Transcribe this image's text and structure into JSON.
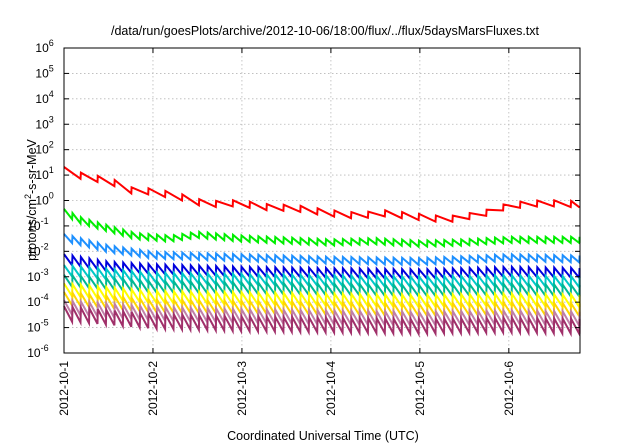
{
  "chart_data": {
    "type": "line",
    "title": "/data/run/goesPlots/archive/2012-10-06/18:00/flux/../flux/5daysMarsFluxes.txt",
    "xlabel": "Coordinated Universal Time (UTC)",
    "ylabel_base": "protons/cm",
    "ylabel_sup": "2",
    "ylabel_rest": "-s-sr-MeV",
    "x_unit": "days since 2012-10-01",
    "xlim": [
      0,
      5.8
    ],
    "x_ticks": [
      {
        "x": 0,
        "label": "2012-10-1"
      },
      {
        "x": 1,
        "label": "2012-10-2"
      },
      {
        "x": 2,
        "label": "2012-10-3"
      },
      {
        "x": 3,
        "label": "2012-10-4"
      },
      {
        "x": 4,
        "label": "2012-10-5"
      },
      {
        "x": 5,
        "label": "2012-10-6"
      }
    ],
    "y_scale": "log",
    "ylim_exp": [
      -6,
      6
    ],
    "y_ticks": [
      {
        "exp": -6,
        "base": "10",
        "sup": "-6"
      },
      {
        "exp": -5,
        "base": "10",
        "sup": "-5"
      },
      {
        "exp": -4,
        "base": "10",
        "sup": "-4"
      },
      {
        "exp": -3,
        "base": "10",
        "sup": "-3"
      },
      {
        "exp": -2,
        "base": "10",
        "sup": "-2"
      },
      {
        "exp": -1,
        "base": "10",
        "sup": "-1"
      },
      {
        "exp": 0,
        "base": "10",
        "sup": "0"
      },
      {
        "exp": 1,
        "base": "10",
        "sup": "1"
      },
      {
        "exp": 2,
        "base": "10",
        "sup": "2"
      },
      {
        "exp": 3,
        "base": "10",
        "sup": "3"
      },
      {
        "exp": 4,
        "base": "10",
        "sup": "4"
      },
      {
        "exp": 5,
        "base": "10",
        "sup": "5"
      },
      {
        "exp": 6,
        "base": "10",
        "sup": "6"
      }
    ],
    "grid": true,
    "series": [
      {
        "color": "#ff0000",
        "width": 2,
        "points": [
          [
            0,
            1.2
          ],
          [
            0.25,
            0.9
          ],
          [
            0.5,
            0.8
          ],
          [
            0.75,
            0.4
          ],
          [
            1.0,
            0.35
          ],
          [
            1.3,
            0.15
          ],
          [
            1.6,
            -0.15
          ],
          [
            2.0,
            -0.1
          ],
          [
            2.2,
            -0.25
          ],
          [
            2.6,
            -0.3
          ],
          [
            3.0,
            -0.5
          ],
          [
            3.3,
            -0.6
          ],
          [
            3.6,
            -0.5
          ],
          [
            4.0,
            -0.65
          ],
          [
            4.3,
            -0.75
          ],
          [
            4.5,
            -0.65
          ],
          [
            4.8,
            -0.45
          ],
          [
            5.0,
            -0.2
          ],
          [
            5.4,
            -0.1
          ],
          [
            5.8,
            -0.15
          ]
        ],
        "saw_period": 0.19,
        "saw_amp": 0.24
      },
      {
        "color": "#00ee00",
        "width": 2,
        "points": [
          [
            0,
            -0.45
          ],
          [
            0.2,
            -0.8
          ],
          [
            0.5,
            -1.1
          ],
          [
            0.8,
            -1.4
          ],
          [
            1.2,
            -1.5
          ],
          [
            1.5,
            -1.35
          ],
          [
            2.0,
            -1.5
          ],
          [
            3.0,
            -1.65
          ],
          [
            3.5,
            -1.6
          ],
          [
            4.0,
            -1.7
          ],
          [
            4.5,
            -1.65
          ],
          [
            5.0,
            -1.55
          ],
          [
            5.8,
            -1.55
          ]
        ],
        "saw_period": 0.095,
        "saw_amp": 0.24
      },
      {
        "color": "#1e90ff",
        "width": 2,
        "points": [
          [
            0,
            -1.45
          ],
          [
            0.5,
            -1.9
          ],
          [
            1.0,
            -2.15
          ],
          [
            2.0,
            -2.25
          ],
          [
            3.0,
            -2.35
          ],
          [
            4.0,
            -2.4
          ],
          [
            5.0,
            -2.25
          ],
          [
            5.8,
            -2.3
          ]
        ],
        "saw_period": 0.095,
        "saw_amp": 0.27
      },
      {
        "color": "#0000dd",
        "width": 2,
        "points": [
          [
            0,
            -2.3
          ],
          [
            0.5,
            -2.6
          ],
          [
            1.0,
            -2.7
          ],
          [
            2.0,
            -2.8
          ],
          [
            3.0,
            -2.85
          ],
          [
            4.0,
            -2.9
          ],
          [
            5.0,
            -2.8
          ],
          [
            5.8,
            -2.85
          ]
        ],
        "saw_period": 0.095,
        "saw_amp": 0.38
      },
      {
        "color": "#00c8c8",
        "width": 2,
        "points": [
          [
            0,
            -2.75
          ],
          [
            1.0,
            -3.05
          ],
          [
            2.0,
            -3.1
          ],
          [
            3.0,
            -3.15
          ],
          [
            4.0,
            -3.2
          ],
          [
            5.0,
            -3.15
          ],
          [
            5.8,
            -3.2
          ]
        ],
        "saw_period": 0.095,
        "saw_amp": 0.42
      },
      {
        "color": "#00b894",
        "width": 2,
        "points": [
          [
            0,
            -3.15
          ],
          [
            1.0,
            -3.4
          ],
          [
            2.0,
            -3.45
          ],
          [
            3.0,
            -3.5
          ],
          [
            4.0,
            -3.55
          ],
          [
            5.0,
            -3.5
          ],
          [
            5.8,
            -3.55
          ]
        ],
        "saw_period": 0.095,
        "saw_amp": 0.45
      },
      {
        "color": "#ffff00",
        "width": 2,
        "points": [
          [
            0,
            -3.5
          ],
          [
            1.0,
            -3.8
          ],
          [
            2.0,
            -3.85
          ],
          [
            3.0,
            -3.9
          ],
          [
            4.0,
            -3.95
          ],
          [
            5.0,
            -3.9
          ],
          [
            5.8,
            -3.95
          ]
        ],
        "saw_period": 0.095,
        "saw_amp": 0.48
      },
      {
        "color": "#ffd700",
        "width": 2,
        "points": [
          [
            0,
            -3.85
          ],
          [
            1.0,
            -4.15
          ],
          [
            2.0,
            -4.2
          ],
          [
            3.0,
            -4.25
          ],
          [
            4.0,
            -4.3
          ],
          [
            5.0,
            -4.25
          ],
          [
            5.8,
            -4.3
          ]
        ],
        "saw_period": 0.095,
        "saw_amp": 0.5
      },
      {
        "color": "#c080a8",
        "width": 2,
        "points": [
          [
            0,
            -4.2
          ],
          [
            1.0,
            -4.45
          ],
          [
            2.0,
            -4.55
          ],
          [
            3.0,
            -4.6
          ],
          [
            4.0,
            -4.65
          ],
          [
            5.0,
            -4.6
          ],
          [
            5.8,
            -4.65
          ]
        ],
        "saw_period": 0.095,
        "saw_amp": 0.55
      },
      {
        "color": "#a0306a",
        "width": 2,
        "points": [
          [
            0,
            -4.45
          ],
          [
            1.0,
            -4.75
          ],
          [
            2.0,
            -4.85
          ],
          [
            3.0,
            -4.9
          ],
          [
            4.0,
            -4.95
          ],
          [
            5.0,
            -4.9
          ],
          [
            5.8,
            -4.95
          ]
        ],
        "saw_period": 0.095,
        "saw_amp": 0.58
      }
    ]
  }
}
